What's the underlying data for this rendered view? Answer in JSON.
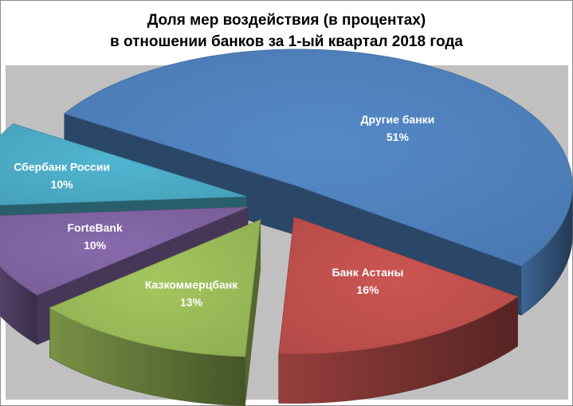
{
  "chart_data": {
    "type": "pie",
    "title_line1": "Доля мер воздействия (в процентах)",
    "title_line2": "в отношении банков за 1-ый квартал 2018 года",
    "slices": [
      {
        "name": "Другие банки",
        "value": 51,
        "label": "51%",
        "color": "#4f81bd"
      },
      {
        "name": "Банк Астаны",
        "value": 16,
        "label": "16%",
        "color": "#c0504d"
      },
      {
        "name": "Казкоммерцбанк",
        "value": 13,
        "label": "13%",
        "color": "#9bbb59"
      },
      {
        "name": "ForteBank",
        "value": 10,
        "label": "10%",
        "color": "#8064a2"
      },
      {
        "name": "Сбербанк России",
        "value": 10,
        "label": "10%",
        "color": "#4bacc6"
      }
    ],
    "style": "3d-exploded",
    "plot_background": "#c0c0c0"
  }
}
